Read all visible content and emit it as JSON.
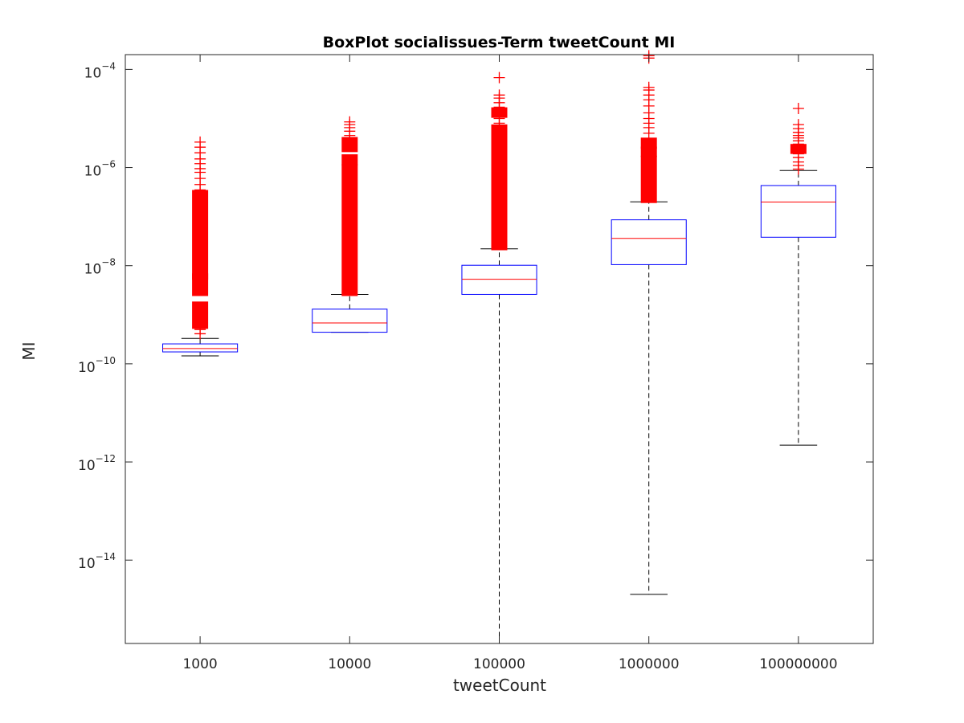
{
  "chart_data": {
    "type": "box",
    "title": "BoxPlot socialissues-Term tweetCount MI",
    "xlabel": "tweetCount",
    "ylabel": "MI",
    "yscale": "log",
    "ylim": [
      2e-16,
      0.0002
    ],
    "yticks": [
      {
        "value": 1e-14,
        "base": "10",
        "exp": "−14"
      },
      {
        "value": 1e-12,
        "base": "10",
        "exp": "−12"
      },
      {
        "value": 1e-10,
        "base": "10",
        "exp": "−10"
      },
      {
        "value": 1e-08,
        "base": "10",
        "exp": "−8"
      },
      {
        "value": 1e-06,
        "base": "10",
        "exp": "−6"
      },
      {
        "value": 0.0001,
        "base": "10",
        "exp": "−4"
      }
    ],
    "categories": [
      "1000",
      "10000",
      "100000",
      "1000000",
      "100000000"
    ],
    "boxes": [
      {
        "category": "1000",
        "whisker_low": 1.45e-10,
        "q1": 1.75e-10,
        "median": 2.05e-10,
        "q3": 2.55e-10,
        "whisker_high": 3.3e-10,
        "outliers_dense": [
          [
            6e-10,
            1.6e-09
          ],
          [
            2.8e-09,
            6e-09
          ],
          [
            6e-09,
            3e-07
          ]
        ],
        "outliers": [
          4.1e-10,
          5e-10,
          3.5e-07,
          4.5e-07,
          6e-07,
          8e-07,
          9.5e-07,
          1.2e-06,
          1.5e-06,
          2e-06,
          2.6e-06,
          3.3e-06
        ]
      },
      {
        "category": "10000",
        "whisker_low": 4.4e-10,
        "q1": 4.4e-10,
        "median": 6.8e-10,
        "q3": 1.3e-09,
        "whisker_high": 2.6e-09,
        "outliers_dense": [
          [
            2.8e-09,
            1e-06
          ],
          [
            1.3e-06,
            1.6e-06
          ],
          [
            2.4e-06,
            3.6e-06
          ]
        ],
        "outliers": [
          4.5e-06,
          5.5e-06,
          6.5e-06,
          7.5e-06,
          8.5e-06
        ]
      },
      {
        "category": "100000",
        "whisker_low": 2e-16,
        "q1": 2.6e-09,
        "median": 5.3e-09,
        "q3": 1.02e-08,
        "whisker_high": 2.2e-08,
        "outliers_dense": [
          [
            2.4e-08,
            6.5e-06
          ],
          [
            1.2e-05,
            1.45e-05
          ]
        ],
        "outliers": [
          8e-06,
          1e-05,
          1.7e-05,
          2.1e-05,
          2.6e-05,
          3e-05,
          6.8e-05
        ]
      },
      {
        "category": "1000000",
        "whisker_low": 2e-15,
        "q1": 1.05e-08,
        "median": 3.6e-08,
        "q3": 8.6e-08,
        "whisker_high": 2e-07,
        "outliers_dense": [
          [
            2.2e-07,
            1.5e-06
          ],
          [
            1.9e-06,
            2.3e-06
          ],
          [
            2.8e-06,
            3.5e-06
          ]
        ],
        "outliers": [
          5e-06,
          6.5e-06,
          8e-06,
          1e-05,
          1.3e-05,
          1.8e-05,
          2.4e-05,
          3e-05,
          3.8e-05,
          4.3e-05,
          0.00017,
          0.00019
        ]
      },
      {
        "category": "100000000",
        "whisker_low": 2.2e-12,
        "q1": 3.8e-08,
        "median": 1.98e-07,
        "q3": 4.3e-07,
        "whisker_high": 8.7e-07,
        "outliers_dense": [
          [
            2.2e-06,
            2.6e-06
          ]
        ],
        "outliers": [
          9.3e-07,
          1.1e-06,
          1.3e-06,
          1.6e-06,
          1.9e-06,
          3e-06,
          3.5e-06,
          4e-06,
          4.5e-06,
          5.2e-06,
          6.2e-06,
          7.5e-06,
          1.6e-05
        ]
      }
    ],
    "colors": {
      "box": "#0000ff",
      "median": "#ff0000",
      "outlier": "#ff0000",
      "whisker": "#000000",
      "axes": "#262626"
    },
    "grid": false
  }
}
